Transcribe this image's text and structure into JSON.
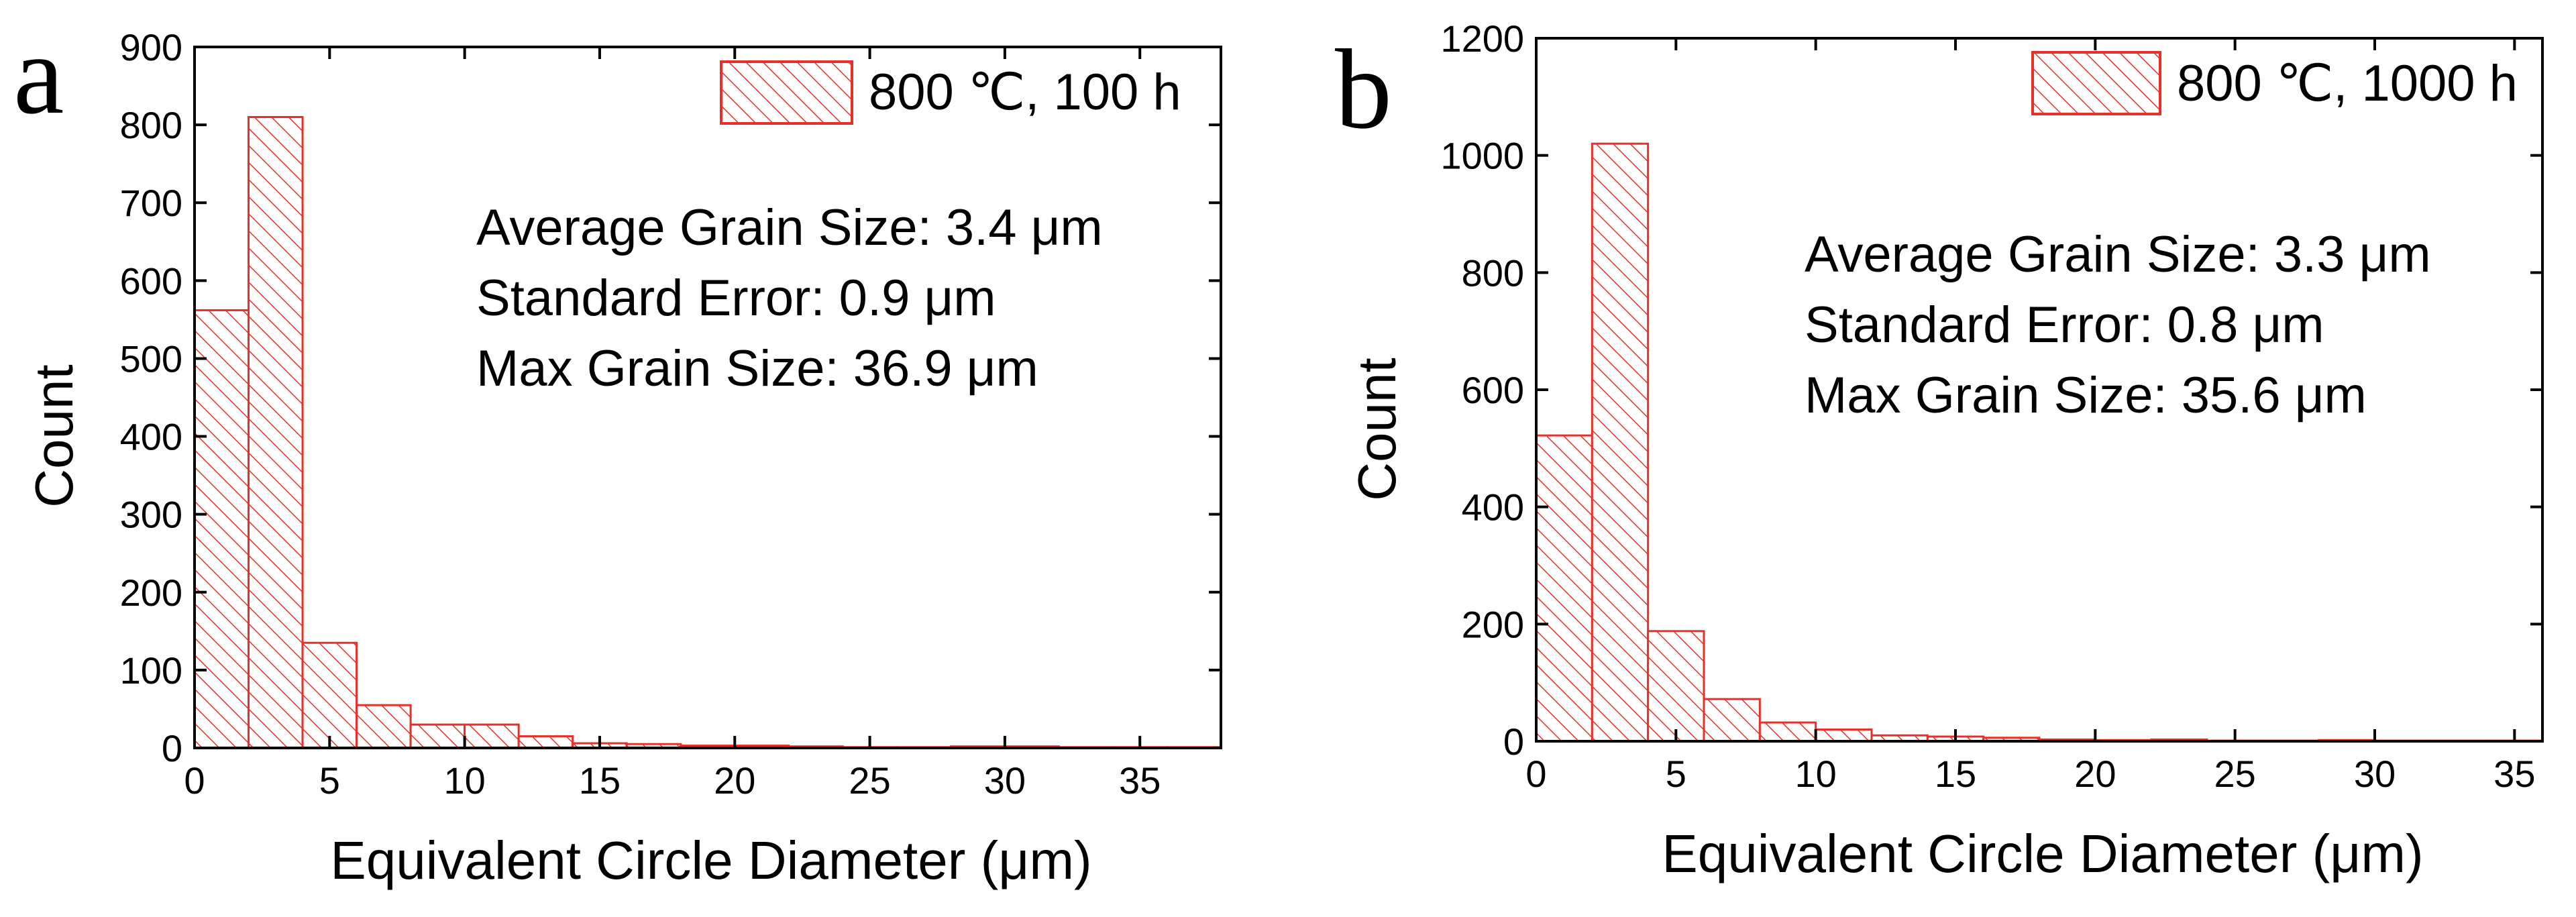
{
  "figure": {
    "background": "#ffffff",
    "bar_color": "#e8302a"
  },
  "chart_data": [
    {
      "type": "bar",
      "panel_label": "a",
      "legend": "800 ℃, 100 h",
      "annotations": [
        "Average Grain Size: 3.4 μm",
        "Standard Error: 0.9 μm",
        "Max Grain Size: 36.9 μm"
      ],
      "xlabel": "Equivalent Circle Diameter (μm)",
      "ylabel": "Count",
      "xlim": [
        0,
        38
      ],
      "ylim": [
        0,
        900
      ],
      "xticks": [
        0,
        5,
        10,
        15,
        20,
        25,
        30,
        35
      ],
      "yticks": [
        0,
        100,
        200,
        300,
        400,
        500,
        600,
        700,
        800,
        900
      ],
      "bin_width": 2,
      "bin_starts": [
        0,
        2,
        4,
        6,
        8,
        10,
        12,
        14,
        16,
        18,
        20,
        22,
        24,
        26,
        28,
        30,
        32,
        34,
        36
      ],
      "values": [
        562,
        810,
        135,
        55,
        30,
        30,
        15,
        6,
        5,
        3,
        3,
        2,
        1,
        1,
        2,
        2,
        1,
        1,
        1
      ]
    },
    {
      "type": "bar",
      "panel_label": "b",
      "legend": "800 ℃, 1000 h",
      "annotations": [
        "Average Grain Size: 3.3 μm",
        "Standard Error: 0.8 μm",
        "Max Grain Size: 35.6 μm"
      ],
      "xlabel": "Equivalent Circle Diameter (μm)",
      "ylabel": "Count",
      "xlim": [
        0,
        36
      ],
      "ylim": [
        0,
        1200
      ],
      "xticks": [
        0,
        5,
        10,
        15,
        20,
        25,
        30,
        35
      ],
      "yticks": [
        0,
        200,
        400,
        600,
        800,
        1000,
        1200
      ],
      "bin_width": 2,
      "bin_starts": [
        0,
        2,
        4,
        6,
        8,
        10,
        12,
        14,
        16,
        18,
        20,
        22,
        24,
        26,
        28,
        30,
        32,
        34
      ],
      "values": [
        522,
        1020,
        188,
        72,
        32,
        20,
        10,
        8,
        6,
        3,
        2,
        3,
        1,
        1,
        2,
        1,
        1,
        1
      ]
    }
  ]
}
